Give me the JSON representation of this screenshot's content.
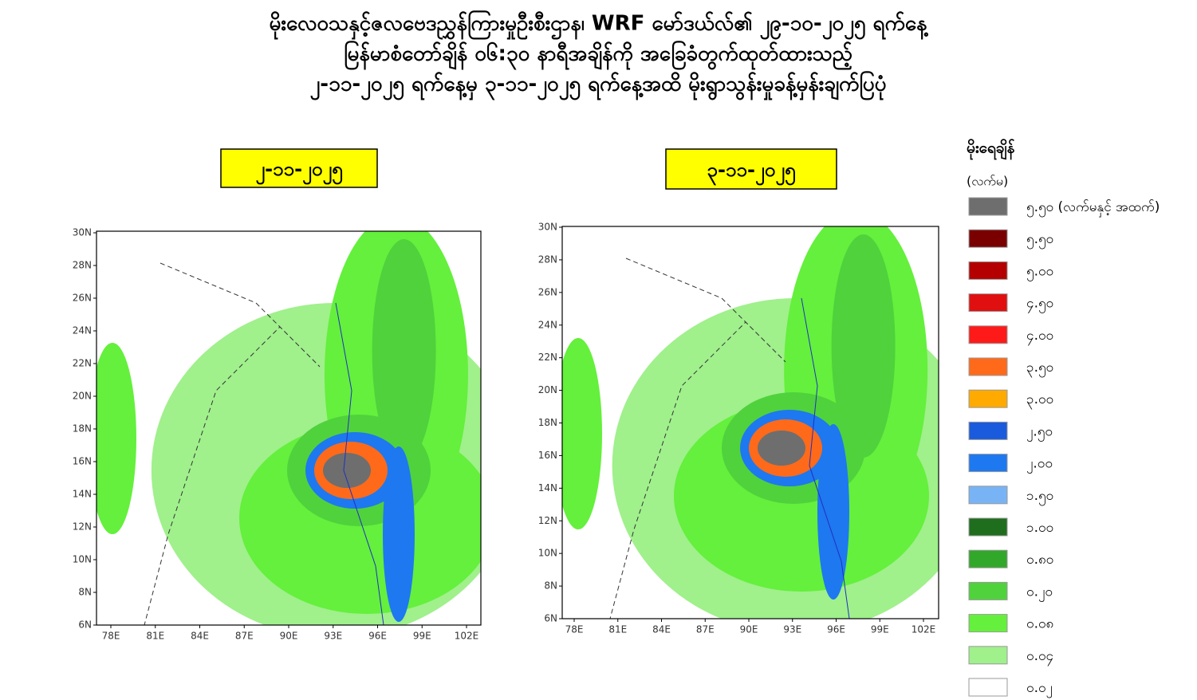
{
  "header": {
    "title_lines": [
      "မိုးလေဝသနှင့်ဇလဗေဒညွှန်ကြားမှုဦးစီးဌာန၊ WRF မော်ဒယ်လ်၏ ၂၉-၁၀-၂၀၂၅ ရက်နေ့",
      "မြန်မာစံတော်ချိန် ၀၆:၃၀ နာရီအချိန်ကို အခြေခံတွက်ထုတ်ထားသည့်",
      "၂-၁၁-၂၀၂၅ ရက်နေ့မှ ၃-၁၁-၂၀၂၅ ရက်နေ့အထိ မိုးရွာသွန်းမှုခန့်မှန်းချက်ပြပုံ"
    ]
  },
  "panels": [
    {
      "date": "၂-၁၁-၂၀၂၅"
    },
    {
      "date": "၃-၁၁-၂၀၂၅"
    }
  ],
  "map_axes": {
    "lat": [
      "30N",
      "28N",
      "26N",
      "24N",
      "22N",
      "20N",
      "18N",
      "16N",
      "14N",
      "12N",
      "10N",
      "8N",
      "6N"
    ],
    "lon": [
      "78E",
      "81E",
      "84E",
      "87E",
      "90E",
      "93E",
      "96E",
      "99E",
      "102E"
    ]
  },
  "legend": {
    "title": "မိုးရေချိန်",
    "unit": "(လက်မ)",
    "items": [
      {
        "label": "၅.၅၀ (လက်မနှင့် အထက်)",
        "color": "#6e6e6e"
      },
      {
        "label": "၅.၅၀",
        "color": "#7a0000"
      },
      {
        "label": "၅.၀၀",
        "color": "#b40000"
      },
      {
        "label": "၄.၅၀",
        "color": "#e01010"
      },
      {
        "label": "၄.၀၀",
        "color": "#ff1a1a"
      },
      {
        "label": "၃.၅၀",
        "color": "#ff6a1a"
      },
      {
        "label": "၃.၀၀",
        "color": "#ffaa00"
      },
      {
        "label": "၂.၅၀",
        "color": "#1a5adc"
      },
      {
        "label": "၂.၀၀",
        "color": "#1e78f0"
      },
      {
        "label": "၁.၅၀",
        "color": "#78b4f5"
      },
      {
        "label": "၁.၀၀",
        "color": "#1e6e1e"
      },
      {
        "label": "၀.၈၀",
        "color": "#32a82a"
      },
      {
        "label": "၀.၂၀",
        "color": "#50d23c"
      },
      {
        "label": "၀.၀၈",
        "color": "#64f03c"
      },
      {
        "label": "၀.၀၄",
        "color": "#a0f08c"
      },
      {
        "label": "၀.၀၂",
        "color": "#ffffff"
      }
    ]
  }
}
